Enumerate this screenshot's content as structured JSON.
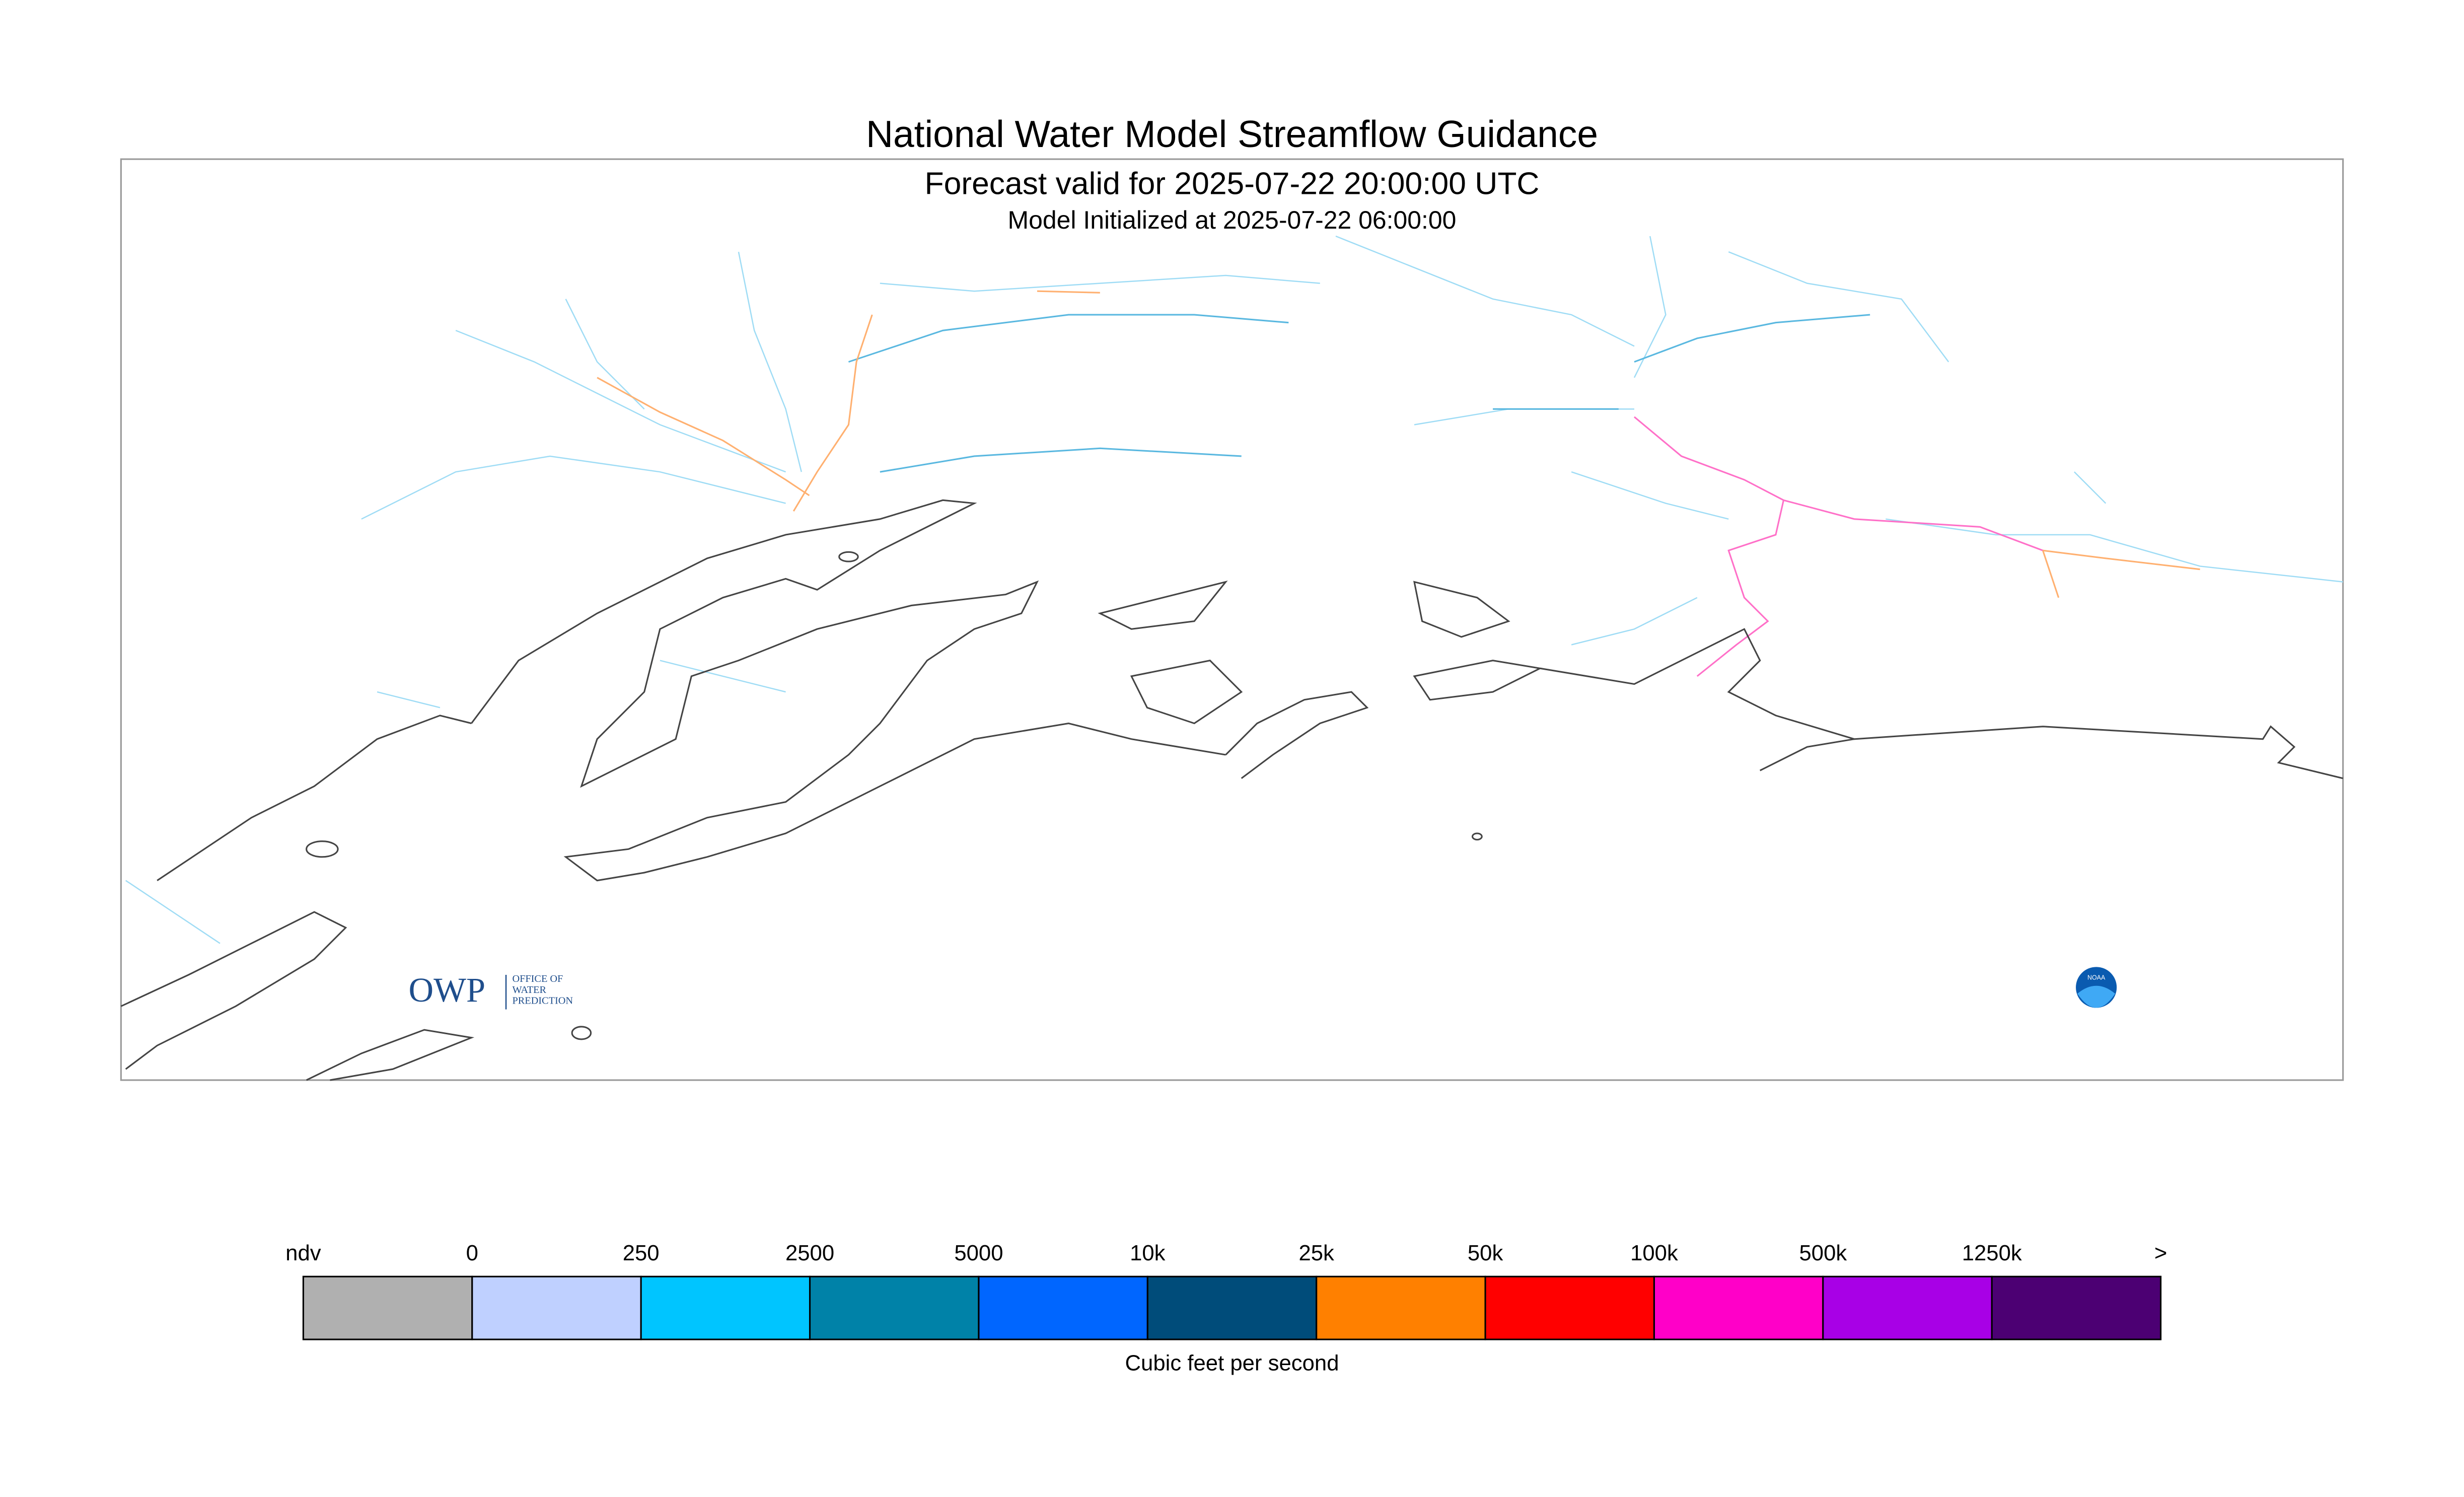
{
  "header": {
    "title": "National Water Model Streamflow Guidance",
    "subtitle": "Forecast valid for 2025-07-22 20:00:00 UTC",
    "initialized": "Model Initialized at 2025-07-22 06:00:00"
  },
  "legend": {
    "labels": [
      "ndv",
      "0",
      "250",
      "2500",
      "5000",
      "10k",
      "25k",
      "50k",
      "100k",
      "500k",
      "1250k",
      ">"
    ],
    "colors": [
      "#b0b0b0",
      "#bfd0ff",
      "#00c5ff",
      "#0082a8",
      "#0066ff",
      "#004c7a",
      "#ff8000",
      "#ff0000",
      "#ff00c8",
      "#a800e6",
      "#4c0073"
    ],
    "unit": "Cubic feet per second"
  },
  "logos": {
    "owp": "OWP",
    "owp_text": [
      "OFFICE OF",
      "WATER",
      "PREDICTION"
    ],
    "noaa": "NOAA"
  }
}
